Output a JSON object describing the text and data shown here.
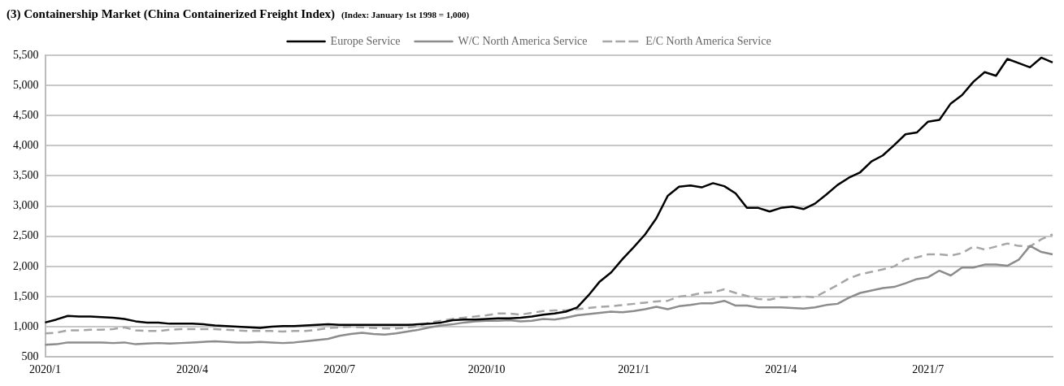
{
  "chart_data": {
    "type": "line",
    "title": "(3) Containership Market (China Containerized Freight Index)",
    "subtitle": "(Index: January 1st 1998 = 1,000)",
    "categories": [
      "2020/1",
      null,
      null,
      null,
      null,
      null,
      null,
      null,
      null,
      null,
      null,
      null,
      null,
      "2020/4",
      null,
      null,
      null,
      null,
      null,
      null,
      null,
      null,
      null,
      null,
      null,
      null,
      "2020/7",
      null,
      null,
      null,
      null,
      null,
      null,
      null,
      null,
      null,
      null,
      null,
      null,
      "2020/10",
      null,
      null,
      null,
      null,
      null,
      null,
      null,
      null,
      null,
      null,
      null,
      null,
      "2021/1",
      null,
      null,
      null,
      null,
      null,
      null,
      null,
      null,
      null,
      null,
      null,
      null,
      "2021/4",
      null,
      null,
      null,
      null,
      null,
      null,
      null,
      null,
      null,
      null,
      null,
      null,
      "2021/7",
      null,
      null,
      null,
      null,
      null,
      null,
      null,
      null,
      null,
      null,
      null
    ],
    "ylim": [
      500,
      5500
    ],
    "yticks": [
      {
        "value": 500,
        "label": "500"
      },
      {
        "value": 1000,
        "label": "1,000"
      },
      {
        "value": 1500,
        "label": "1,500"
      },
      {
        "value": 2000,
        "label": "2,000"
      },
      {
        "value": 2500,
        "label": "2,500"
      },
      {
        "value": 3000,
        "label": "3,000"
      },
      {
        "value": 3500,
        "label": "3,500"
      },
      {
        "value": 4000,
        "label": "4,000"
      },
      {
        "value": 4500,
        "label": "4,500"
      },
      {
        "value": 5000,
        "label": "5,000"
      },
      {
        "value": 5500,
        "label": "5,500"
      }
    ],
    "grid": "y",
    "legend": "top",
    "marker": "none",
    "series": [
      {
        "name": "Europe Service",
        "color": "#000000",
        "line_style": "solid",
        "values": [
          1070,
          1120,
          1180,
          1170,
          1170,
          1160,
          1150,
          1130,
          1090,
          1070,
          1070,
          1050,
          1050,
          1050,
          1040,
          1020,
          1010,
          1000,
          990,
          980,
          1000,
          1010,
          1010,
          1020,
          1030,
          1040,
          1030,
          1030,
          1030,
          1030,
          1030,
          1030,
          1030,
          1040,
          1050,
          1070,
          1110,
          1120,
          1120,
          1130,
          1140,
          1140,
          1150,
          1170,
          1200,
          1220,
          1250,
          1320,
          1520,
          1750,
          1900,
          2120,
          2320,
          2530,
          2800,
          3170,
          3320,
          3340,
          3310,
          3380,
          3330,
          3210,
          2970,
          2970,
          2910,
          2970,
          2990,
          2950,
          3040,
          3190,
          3350,
          3470,
          3560,
          3740,
          3840,
          4010,
          4190,
          4220,
          4400,
          4430,
          4700,
          4840,
          5060,
          5220,
          5160,
          5440,
          5370,
          5300,
          5460,
          5380
        ]
      },
      {
        "name": "W/C North America Service",
        "color": "#8c8c8c",
        "line_style": "solid",
        "values": [
          700,
          710,
          740,
          740,
          740,
          740,
          730,
          740,
          710,
          720,
          730,
          720,
          730,
          740,
          750,
          760,
          750,
          740,
          740,
          750,
          740,
          730,
          740,
          760,
          780,
          800,
          850,
          880,
          900,
          880,
          870,
          890,
          920,
          950,
          990,
          1020,
          1040,
          1070,
          1090,
          1100,
          1100,
          1110,
          1090,
          1100,
          1130,
          1120,
          1150,
          1190,
          1210,
          1230,
          1250,
          1240,
          1260,
          1290,
          1330,
          1290,
          1340,
          1360,
          1390,
          1390,
          1430,
          1350,
          1350,
          1320,
          1320,
          1320,
          1310,
          1300,
          1320,
          1360,
          1380,
          1480,
          1560,
          1600,
          1640,
          1660,
          1720,
          1790,
          1820,
          1930,
          1850,
          1980,
          1980,
          2030,
          2030,
          2010,
          2110,
          2340,
          2240,
          2200
        ]
      },
      {
        "name": "E/C North America Service",
        "color": "#a6a6a6",
        "line_style": "dashed",
        "values": [
          890,
          900,
          940,
          940,
          950,
          950,
          960,
          990,
          940,
          930,
          930,
          950,
          960,
          960,
          960,
          960,
          950,
          940,
          930,
          930,
          930,
          920,
          930,
          930,
          950,
          980,
          990,
          1000,
          990,
          980,
          970,
          970,
          990,
          1010,
          1070,
          1100,
          1130,
          1150,
          1170,
          1190,
          1220,
          1220,
          1200,
          1230,
          1260,
          1270,
          1270,
          1290,
          1310,
          1330,
          1340,
          1360,
          1380,
          1400,
          1420,
          1430,
          1500,
          1520,
          1560,
          1570,
          1620,
          1560,
          1510,
          1460,
          1450,
          1490,
          1490,
          1500,
          1490,
          1590,
          1690,
          1800,
          1870,
          1910,
          1950,
          2000,
          2120,
          2150,
          2200,
          2200,
          2180,
          2220,
          2330,
          2280,
          2330,
          2380,
          2340,
          2330,
          2450,
          2530
        ]
      }
    ]
  }
}
